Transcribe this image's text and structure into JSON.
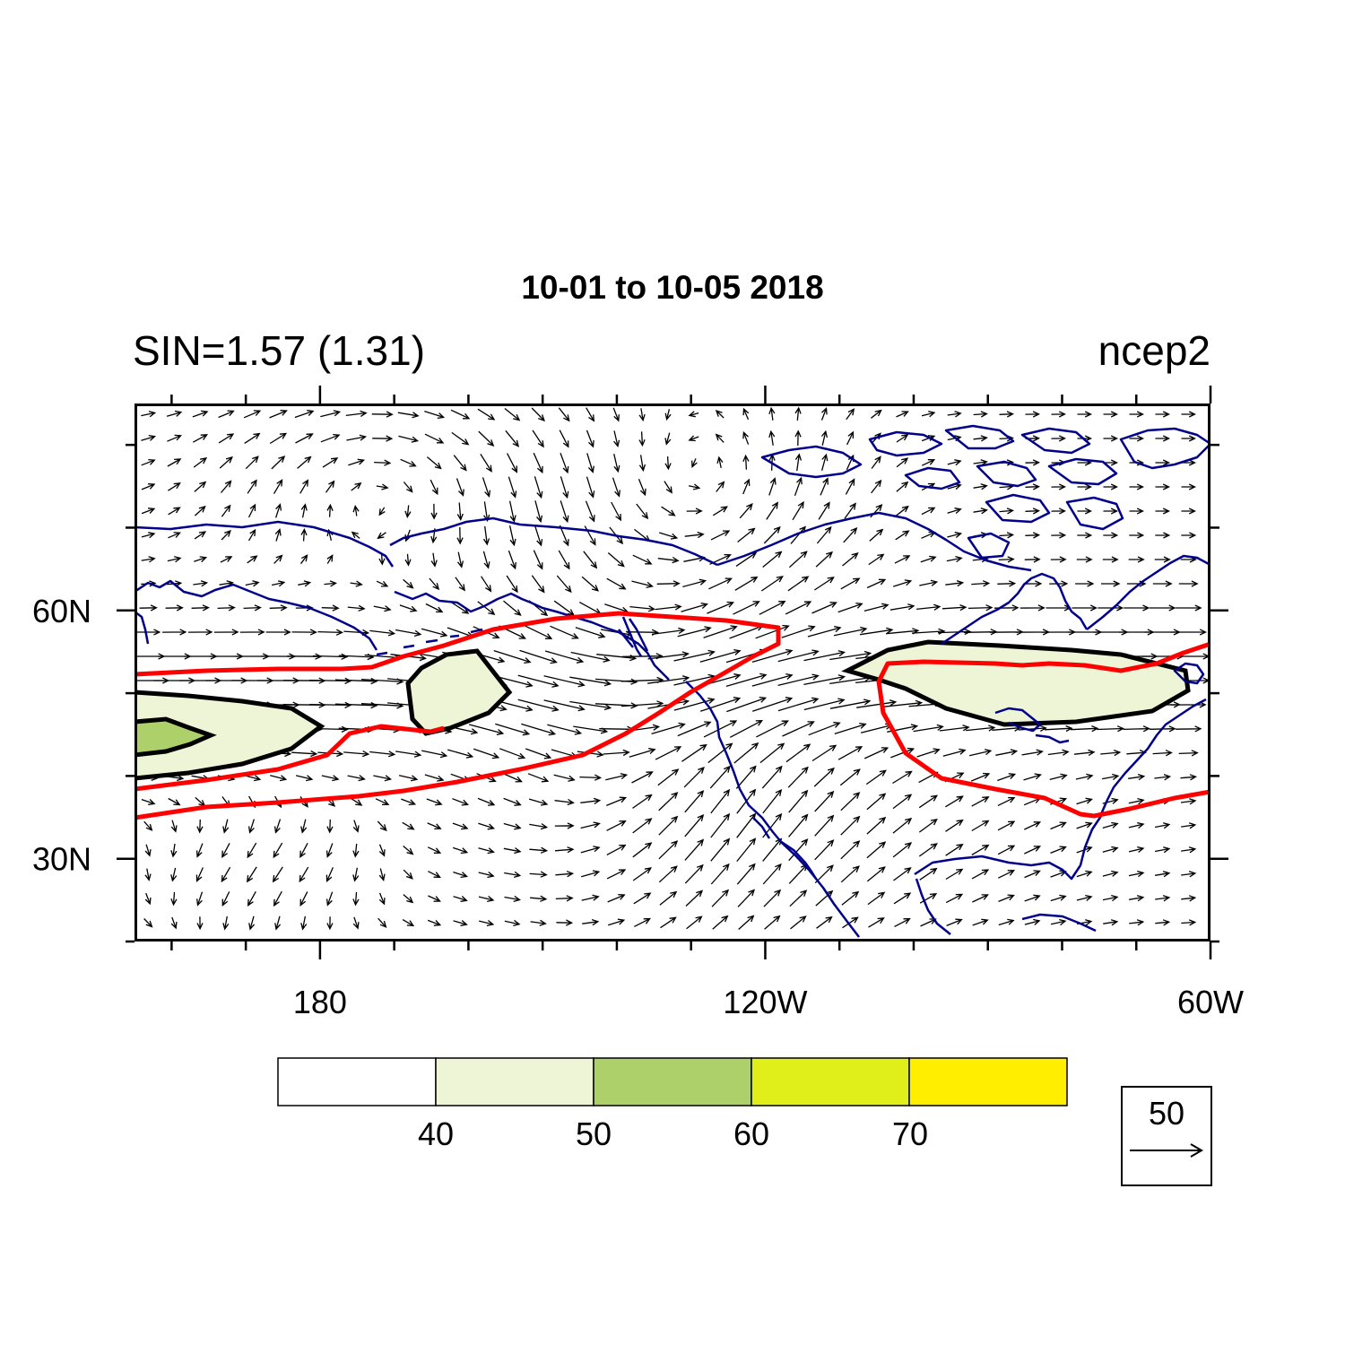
{
  "title": "10-01 to 10-05 2018",
  "left_subtitle": "SIN=1.57 (1.31)",
  "right_subtitle": "ncep2",
  "map": {
    "lon_range": [
      155,
      300
    ],
    "lat_range": [
      20,
      85
    ],
    "x_ticks": [
      {
        "lon": 180,
        "label": "180"
      },
      {
        "lon": 240,
        "label": "120W"
      },
      {
        "lon": 300,
        "label": "60W"
      }
    ],
    "y_ticks": [
      {
        "lat": 60,
        "label": "60N"
      },
      {
        "lat": 30,
        "label": "30N"
      }
    ],
    "coast_color": "#00008b",
    "jet_contour_color": "#ff0000",
    "vector_color": "#000000"
  },
  "colorbar": {
    "levels": [
      "40",
      "50",
      "60",
      "70"
    ],
    "colors": [
      "#ffffff",
      "#eef5d6",
      "#aed06b",
      "#e0ee19",
      "#ffee00"
    ]
  },
  "reference_vector": {
    "value": "50"
  }
}
